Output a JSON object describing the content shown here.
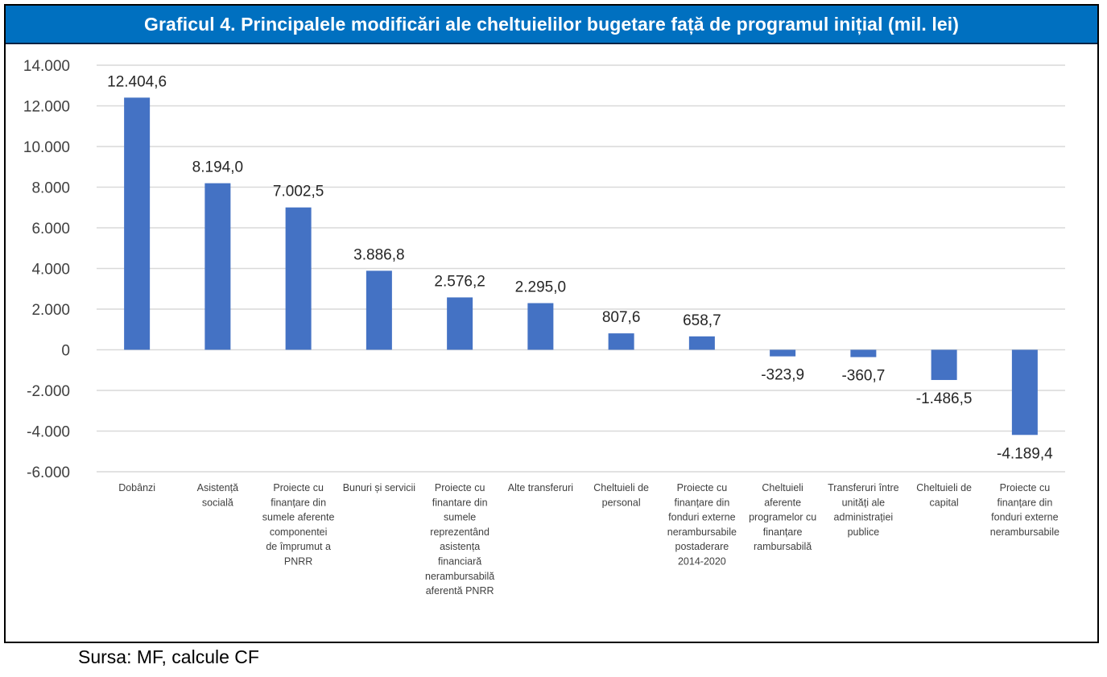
{
  "title": "Graficul 4. Principalele modificări ale cheltuielilor bugetare față de programul inițial (mil. lei)",
  "source": "Sursa: MF, calcule CF",
  "colors": {
    "title_bg": "#0070c0",
    "bar": "#4472c4",
    "grid": "#d9d9d9"
  },
  "chart_data": {
    "type": "bar",
    "title": "Graficul 4. Principalele modificări ale cheltuielilor bugetare față de programul inițial (mil. lei)",
    "xlabel": "",
    "ylabel": "",
    "ylim": [
      -6000,
      14000
    ],
    "yticks": [
      14000,
      12000,
      10000,
      8000,
      6000,
      4000,
      2000,
      0,
      -2000,
      -4000,
      -6000
    ],
    "ytick_labels": [
      "14.000",
      "12.000",
      "10.000",
      "8.000",
      "6.000",
      "4.000",
      "2.000",
      "0",
      "-2.000",
      "-4.000",
      "-6.000"
    ],
    "grid": true,
    "legend": "none",
    "categories": [
      [
        "Dobânzi"
      ],
      [
        "Asistență",
        "socială"
      ],
      [
        "Proiecte cu",
        "finanțare din",
        "sumele aferente",
        "componentei",
        "de împrumut a",
        "PNRR"
      ],
      [
        "Bunuri și servicii"
      ],
      [
        "Proiecte cu",
        "finantare din",
        "sumele",
        "reprezentând",
        "asistența",
        "financiară",
        "nerambursabilă",
        "aferentă PNRR"
      ],
      [
        "Alte transferuri"
      ],
      [
        "Cheltuieli de",
        "personal"
      ],
      [
        "Proiecte cu",
        "finanțare din",
        "fonduri externe",
        "nerambursabile",
        "postaderare",
        "2014-2020"
      ],
      [
        "Cheltuieli",
        "aferente",
        "programelor cu",
        "finanțare",
        "rambursabilă"
      ],
      [
        "Transferuri între",
        "unități ale",
        "administrației",
        "publice"
      ],
      [
        "Cheltuieli de",
        "capital"
      ],
      [
        "Proiecte cu",
        "finanțare din",
        "fonduri externe",
        "nerambursabile"
      ]
    ],
    "values": [
      12404.6,
      8194.0,
      7002.5,
      3886.8,
      2576.2,
      2295.0,
      807.6,
      658.7,
      -323.9,
      -360.7,
      -1486.5,
      -4189.4
    ],
    "data_labels": [
      "12.404,6",
      "8.194,0",
      "7.002,5",
      "3.886,8",
      "2.576,2",
      "2.295,0",
      "807,6",
      "658,7",
      "-323,9",
      "-360,7",
      "-1.486,5",
      "-4.189,4"
    ]
  }
}
